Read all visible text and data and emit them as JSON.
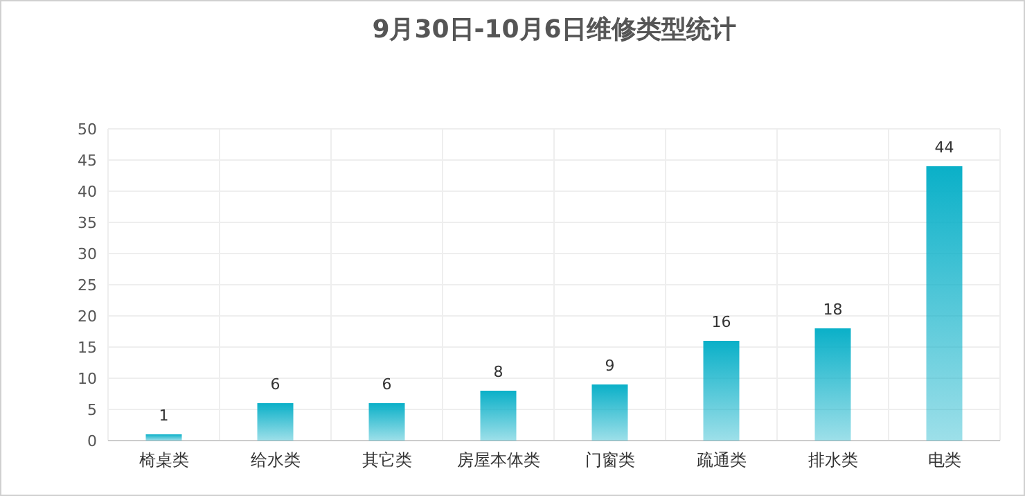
{
  "chart_data": {
    "type": "bar",
    "title": "9月30日-10月6日维修类型统计",
    "categories": [
      "椅桌类",
      "给水类",
      "其它类",
      "房屋本体类",
      "门窗类",
      "疏通类",
      "排水类",
      "电类"
    ],
    "values": [
      1,
      6,
      6,
      8,
      9,
      16,
      18,
      44
    ],
    "color": "#0ab0c8",
    "ylim": [
      0,
      50
    ],
    "yticks": [
      0,
      5,
      10,
      15,
      20,
      25,
      30,
      35,
      40,
      45,
      50
    ],
    "grid": true,
    "data_labels": true
  }
}
